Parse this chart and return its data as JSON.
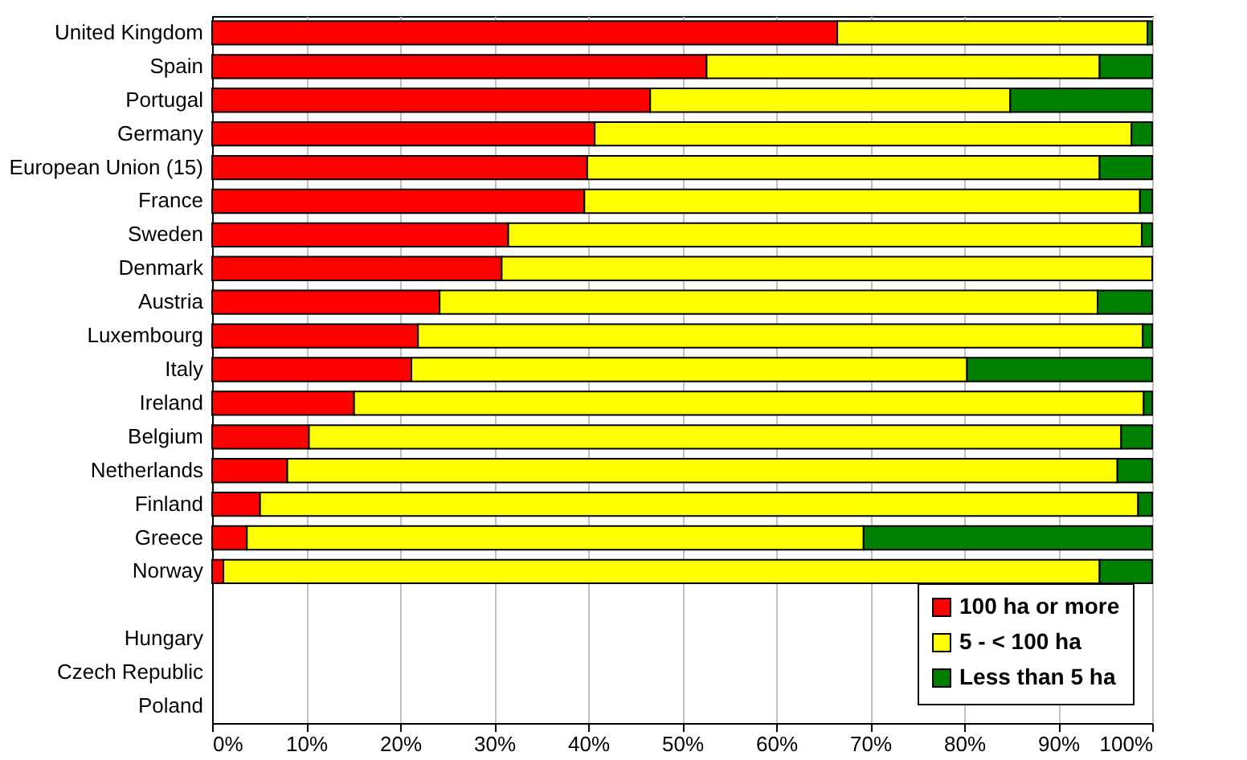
{
  "chart_data": {
    "type": "bar",
    "orientation": "horizontal",
    "stacked": true,
    "categories": [
      "United Kingdom",
      "Spain",
      "Portugal",
      "Germany",
      "European Union (15)",
      "France",
      "Sweden",
      "Denmark",
      "Austria",
      "Luxembourg",
      "Italy",
      "Ireland",
      "Belgium",
      "Netherlands",
      "Finland",
      "Greece",
      "Norway",
      null,
      "Hungary",
      "Czech Republic",
      "Poland"
    ],
    "series": [
      {
        "name": "100 ha or more",
        "color": "#ff0000",
        "values": [
          66.5,
          52.6,
          46.6,
          40.7,
          39.9,
          39.6,
          31.5,
          30.8,
          24.2,
          21.9,
          21.2,
          15.1,
          10.3,
          8.0,
          5.1,
          3.7,
          1.2,
          null,
          null,
          null,
          null
        ]
      },
      {
        "name": "5 - < 100 ha",
        "color": "#ffff00",
        "values": [
          33.0,
          41.8,
          38.3,
          57.1,
          54.5,
          59.1,
          67.4,
          69.2,
          70.0,
          77.1,
          59.1,
          84.0,
          86.4,
          88.3,
          93.4,
          65.6,
          93.2,
          null,
          null,
          null,
          null
        ]
      },
      {
        "name": "Less than 5 ha",
        "color": "#008000",
        "values": [
          0.5,
          5.6,
          15.1,
          2.2,
          5.6,
          1.3,
          1.1,
          null,
          5.8,
          1.0,
          19.7,
          0.9,
          3.3,
          3.7,
          1.5,
          30.7,
          5.6,
          null,
          null,
          null,
          null
        ]
      }
    ],
    "xlim": [
      0,
      100
    ],
    "xticks": [
      {
        "value": 0,
        "label": "0%"
      },
      {
        "value": 10,
        "label": "10%"
      },
      {
        "value": 20,
        "label": "20%"
      },
      {
        "value": 30,
        "label": "30%"
      },
      {
        "value": 40,
        "label": "40%"
      },
      {
        "value": 50,
        "label": "50%"
      },
      {
        "value": 60,
        "label": "60%"
      },
      {
        "value": 70,
        "label": "70%"
      },
      {
        "value": 80,
        "label": "80%"
      },
      {
        "value": 90,
        "label": "90%"
      },
      {
        "value": 100,
        "label": "100%"
      }
    ],
    "grid": "x",
    "legend": "bottom right"
  }
}
